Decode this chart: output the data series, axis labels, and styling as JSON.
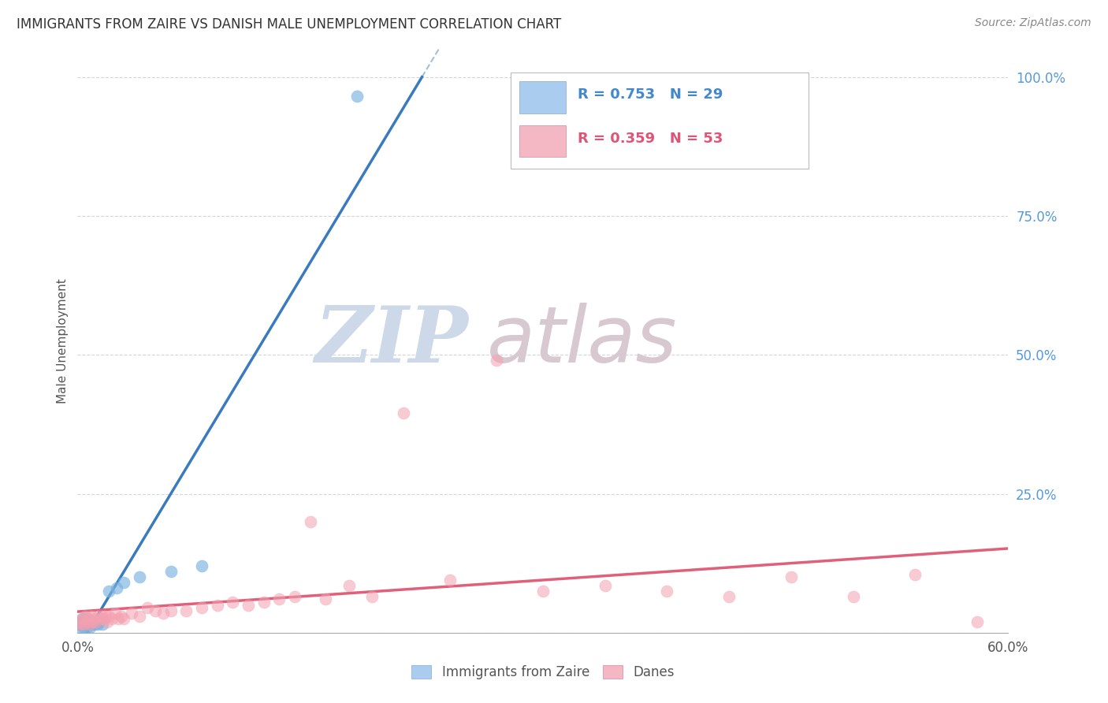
{
  "title": "IMMIGRANTS FROM ZAIRE VS DANISH MALE UNEMPLOYMENT CORRELATION CHART",
  "source": "Source: ZipAtlas.com",
  "ylabel": "Male Unemployment",
  "xlim": [
    0.0,
    0.6
  ],
  "ylim": [
    0.0,
    1.05
  ],
  "blue_R": "R = 0.753",
  "blue_N": "N = 29",
  "pink_R": "R = 0.359",
  "pink_N": "N = 53",
  "legend_label_blue": "Immigrants from Zaire",
  "legend_label_pink": "Danes",
  "blue_color": "#7ab3e0",
  "blue_line_color": "#3a7abf",
  "blue_dash_color": "#9ab8d8",
  "pink_color": "#f4a0b0",
  "pink_line_color": "#e0607a",
  "background_color": "#ffffff",
  "watermark_zip_color": "#cdd8e8",
  "watermark_atlas_color": "#d8c8d0",
  "grid_color": "#cccccc",
  "ytick_color": "#5599dd",
  "blue_x": [
    0.001,
    0.002,
    0.002,
    0.003,
    0.003,
    0.004,
    0.004,
    0.005,
    0.005,
    0.006,
    0.006,
    0.007,
    0.007,
    0.008,
    0.008,
    0.009,
    0.01,
    0.011,
    0.012,
    0.013,
    0.014,
    0.016,
    0.02,
    0.025,
    0.03,
    0.04,
    0.06,
    0.08,
    0.18
  ],
  "blue_y": [
    0.015,
    0.01,
    0.02,
    0.015,
    0.025,
    0.01,
    0.02,
    0.015,
    0.025,
    0.01,
    0.02,
    0.015,
    0.025,
    0.01,
    0.02,
    0.015,
    0.02,
    0.015,
    0.02,
    0.015,
    0.02,
    0.015,
    0.075,
    0.08,
    0.09,
    0.1,
    0.11,
    0.12,
    0.965
  ],
  "pink_x": [
    0.001,
    0.002,
    0.003,
    0.004,
    0.005,
    0.006,
    0.007,
    0.008,
    0.009,
    0.01,
    0.011,
    0.012,
    0.013,
    0.015,
    0.016,
    0.017,
    0.018,
    0.019,
    0.02,
    0.022,
    0.024,
    0.026,
    0.028,
    0.03,
    0.035,
    0.04,
    0.045,
    0.05,
    0.055,
    0.06,
    0.07,
    0.08,
    0.09,
    0.1,
    0.11,
    0.12,
    0.13,
    0.14,
    0.15,
    0.16,
    0.175,
    0.19,
    0.21,
    0.24,
    0.27,
    0.3,
    0.34,
    0.38,
    0.42,
    0.46,
    0.5,
    0.54,
    0.58
  ],
  "pink_y": [
    0.02,
    0.015,
    0.025,
    0.015,
    0.03,
    0.02,
    0.025,
    0.015,
    0.03,
    0.02,
    0.025,
    0.02,
    0.03,
    0.025,
    0.03,
    0.025,
    0.03,
    0.02,
    0.03,
    0.025,
    0.035,
    0.025,
    0.03,
    0.025,
    0.035,
    0.03,
    0.045,
    0.04,
    0.035,
    0.04,
    0.04,
    0.045,
    0.05,
    0.055,
    0.05,
    0.055,
    0.06,
    0.065,
    0.2,
    0.06,
    0.085,
    0.065,
    0.395,
    0.095,
    0.49,
    0.075,
    0.085,
    0.075,
    0.065,
    0.1,
    0.065,
    0.105,
    0.02
  ]
}
